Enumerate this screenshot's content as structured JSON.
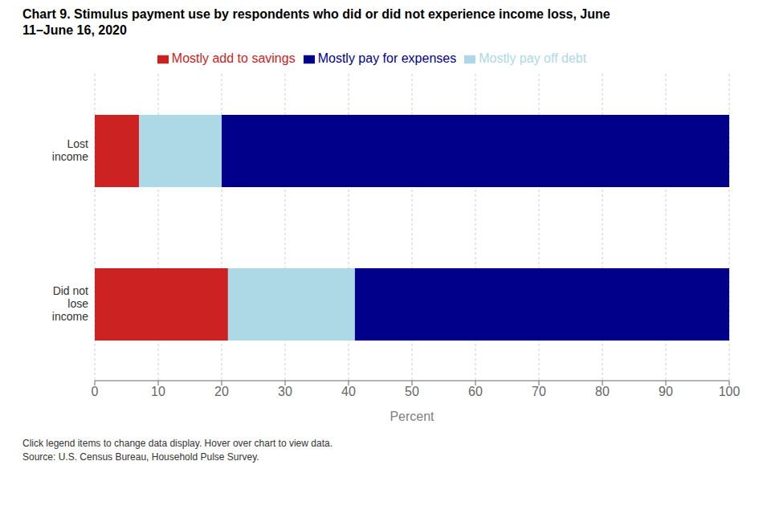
{
  "chart_data": {
    "type": "bar",
    "title": "Chart 9. Stimulus payment use by respondents who did or did not experience income loss, June\n11–June 16, 2020",
    "categories": [
      "Lost\nincome",
      "Did not\nlose\nincome"
    ],
    "series": [
      {
        "name": "Mostly add to savings",
        "color": "#CC2222",
        "values": [
          7,
          21
        ]
      },
      {
        "name": "Mostly pay off debt",
        "color": "#ADD8E6",
        "values": [
          13,
          20
        ]
      },
      {
        "name": "Mostly pay for expenses",
        "color": "#00008B",
        "values": [
          80,
          59
        ]
      }
    ],
    "orientation": "horizontal",
    "stacked": true,
    "xlim": [
      0,
      100
    ],
    "xticks": [
      0,
      10,
      20,
      30,
      40,
      50,
      60,
      70,
      80,
      90,
      100
    ],
    "xlabel": "Percent",
    "grid": true,
    "legend": "top",
    "annotations": [
      "Click legend items to change data display. Hover over chart to view data.",
      "Source: U.S. Census Bureau, Household Pulse Survey."
    ]
  }
}
